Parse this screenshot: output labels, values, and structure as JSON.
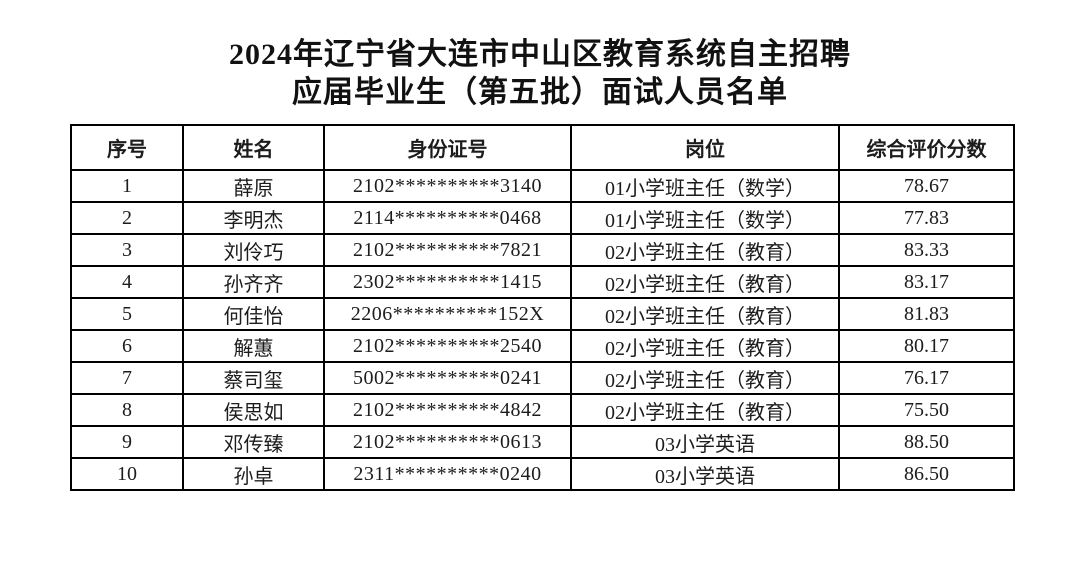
{
  "page": {
    "background": "#ffffff",
    "text_color": "#1c1c1c",
    "border_color": "#000000"
  },
  "title": {
    "line1": "2024年辽宁省大连市中山区教育系统自主招聘",
    "line2": "应届毕业生（第五批）面试人员名单"
  },
  "table": {
    "columns": [
      "序号",
      "姓名",
      "身份证号",
      "岗位",
      "综合评价分数"
    ],
    "rows": [
      {
        "no": "1",
        "name": "薛原",
        "id_number": "2102**********3140",
        "position": "01小学班主任（数学）",
        "score": "78.67"
      },
      {
        "no": "2",
        "name": "李明杰",
        "id_number": "2114**********0468",
        "position": "01小学班主任（数学）",
        "score": "77.83"
      },
      {
        "no": "3",
        "name": "刘伶巧",
        "id_number": "2102**********7821",
        "position": "02小学班主任（教育）",
        "score": "83.33"
      },
      {
        "no": "4",
        "name": "孙齐齐",
        "id_number": "2302**********1415",
        "position": "02小学班主任（教育）",
        "score": "83.17"
      },
      {
        "no": "5",
        "name": "何佳怡",
        "id_number": "2206**********152X",
        "position": "02小学班主任（教育）",
        "score": "81.83"
      },
      {
        "no": "6",
        "name": "解蕙",
        "id_number": "2102**********2540",
        "position": "02小学班主任（教育）",
        "score": "80.17"
      },
      {
        "no": "7",
        "name": "蔡司玺",
        "id_number": "5002**********0241",
        "position": "02小学班主任（教育）",
        "score": "76.17"
      },
      {
        "no": "8",
        "name": "侯思如",
        "id_number": "2102**********4842",
        "position": "02小学班主任（教育）",
        "score": "75.50"
      },
      {
        "no": "9",
        "name": "邓传臻",
        "id_number": "2102**********0613",
        "position": "03小学英语",
        "score": "88.50"
      },
      {
        "no": "10",
        "name": "孙卓",
        "id_number": "2311**********0240",
        "position": "03小学英语",
        "score": "86.50"
      }
    ]
  }
}
